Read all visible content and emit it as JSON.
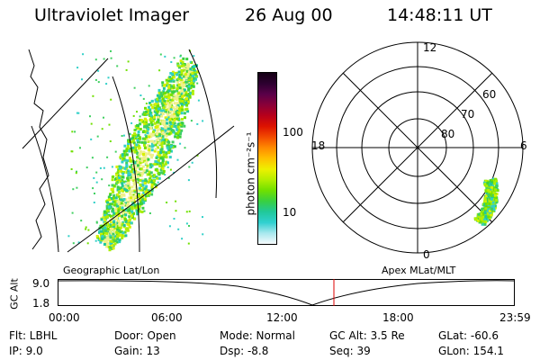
{
  "header": {
    "instrument": "Ultraviolet Imager",
    "date": "26 Aug 00",
    "time": "14:48:11 UT"
  },
  "geo_panel": {
    "label": "Geographic Lat/Lon"
  },
  "colorbar": {
    "unit_label": "photon cm⁻²s⁻¹",
    "tick_100": "100",
    "tick_10": "10",
    "colors": [
      "#140014",
      "#2d0030",
      "#5a0048",
      "#8a0038",
      "#b8001a",
      "#dd1200",
      "#f24a00",
      "#ff8a00",
      "#ffc000",
      "#eef000",
      "#b4ee00",
      "#70e000",
      "#38d040",
      "#20c89a",
      "#30d0d0",
      "#a8e8ee",
      "#f6fafc"
    ]
  },
  "polar_panel": {
    "label": "Apex MLat/MLT",
    "mlt_labels": {
      "top": "12",
      "left": "18",
      "right": "6",
      "bottom": "0"
    },
    "mlat_labels": {
      "r60": "60",
      "r70": "70",
      "r80": "80"
    }
  },
  "altitude_strip": {
    "axis_label": "GC Alt",
    "y_ticks": [
      "9.0",
      "1.8"
    ],
    "x_ticks": [
      "00:00",
      "06:00",
      "12:00",
      "18:00",
      "23:59"
    ],
    "marker_color": "#dd0000"
  },
  "status": {
    "filter": "Flt: LBHL",
    "ip": "IP:  9.0",
    "door": "Door: Open",
    "gain": "Gain: 13",
    "mode": "Mode: Normal",
    "dsp": "Dsp:    -8.8",
    "gc_alt": "GC Alt: 3.5 Re",
    "seq": "Seq: 39",
    "glat": "GLat: -60.6",
    "glon": "GLon: 154.1"
  }
}
